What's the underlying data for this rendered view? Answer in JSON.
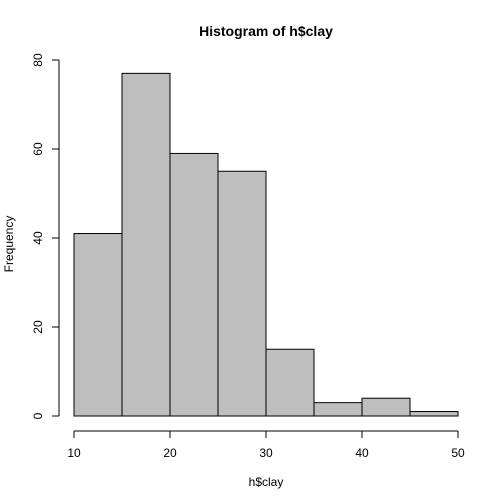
{
  "chart_data": {
    "type": "bar",
    "title": "Histogram of h$clay",
    "xlabel": "h$clay",
    "ylabel": "Frequency",
    "bins": [
      {
        "from": 10,
        "to": 15,
        "count": 41
      },
      {
        "from": 15,
        "to": 20,
        "count": 77
      },
      {
        "from": 20,
        "to": 25,
        "count": 59
      },
      {
        "from": 25,
        "to": 30,
        "count": 55
      },
      {
        "from": 30,
        "to": 35,
        "count": 15
      },
      {
        "from": 35,
        "to": 40,
        "count": 3
      },
      {
        "from": 40,
        "to": 45,
        "count": 4
      },
      {
        "from": 45,
        "to": 50,
        "count": 1
      }
    ],
    "xlim": [
      10,
      50
    ],
    "ylim": [
      0,
      80
    ],
    "x_ticks": [
      "10",
      "20",
      "30",
      "40",
      "50"
    ],
    "y_ticks": [
      "0",
      "20",
      "40",
      "60",
      "80"
    ],
    "bar_color": "#bebebe",
    "grid": false
  }
}
